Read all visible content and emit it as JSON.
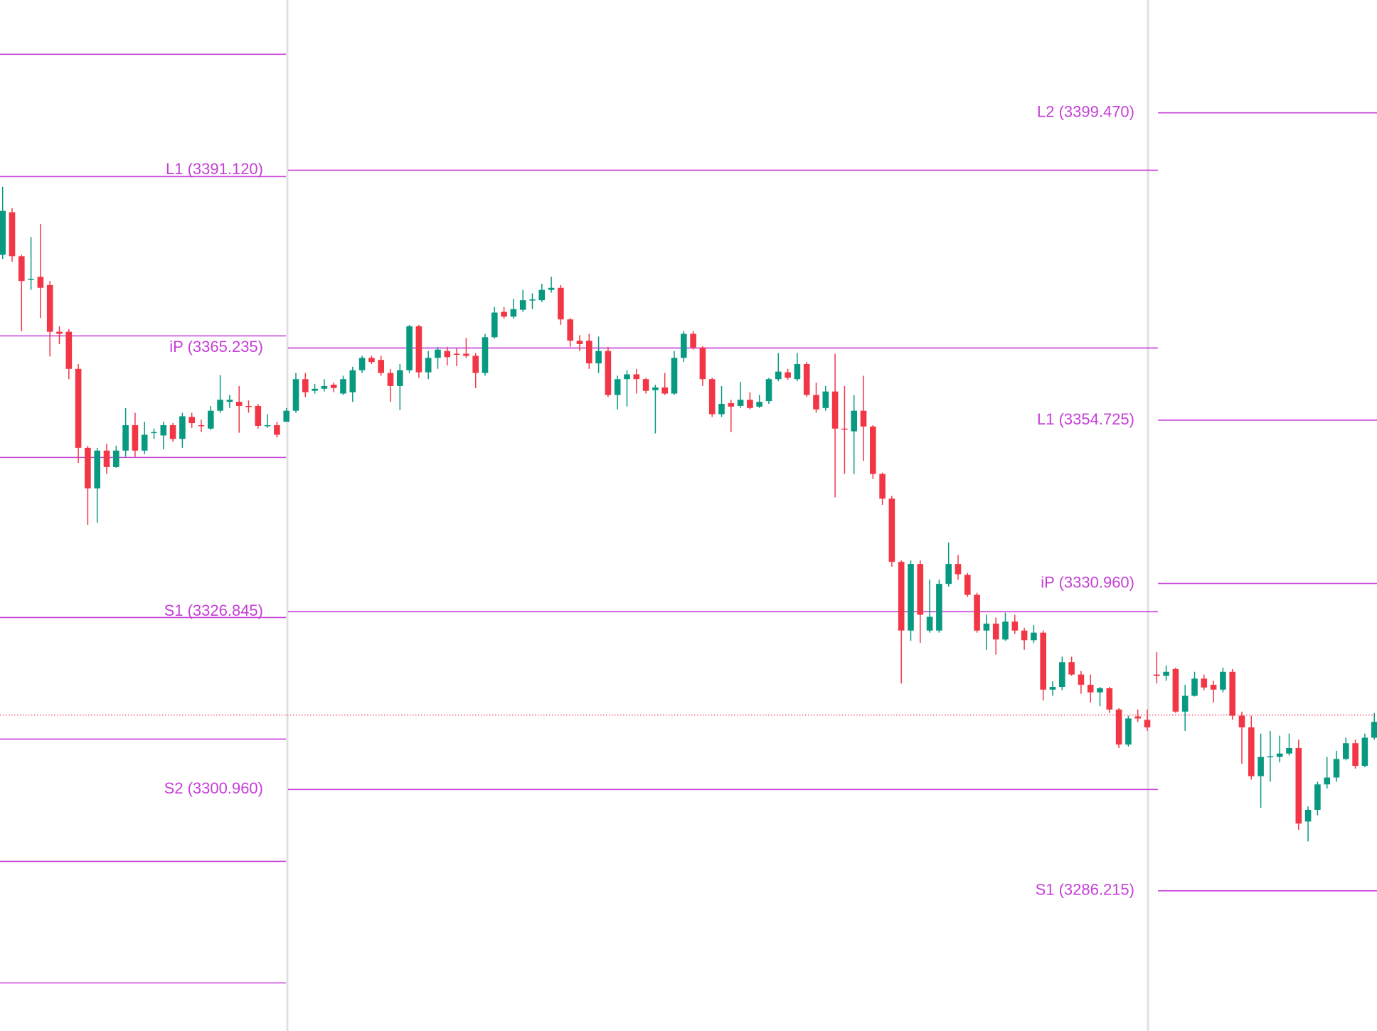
{
  "chart_data": {
    "type": "candlestick",
    "ylim": [
      3265.8,
      3415.9
    ],
    "up_color": "#089981",
    "down_color": "#f23645",
    "level_color": "#c53fd6",
    "current_price": 3311.8,
    "sessions": [
      {
        "levels": [
          3408.0,
          3390.2,
          3367.0,
          3349.3,
          3326.0,
          3308.3,
          3290.5,
          3272.8
        ],
        "open": [
          3378.8,
          3385.0,
          3378.6,
          3375.3,
          3375.6,
          3374.4,
          3367.6,
          3367.6,
          3362.2,
          3350.7,
          3344.8,
          3350.3,
          3347.9,
          3350.3,
          3354.0,
          3350.3,
          3352.9,
          3352.5,
          3354.0,
          3352.0,
          3355.2,
          3354.0,
          3353.5,
          3356.1,
          3357.4,
          3357.4,
          3356.8,
          3356.8,
          3353.9,
          3354.0,
          3354.5
        ],
        "high": [
          3388.7,
          3385.6,
          3378.8,
          3381.4,
          3383.3,
          3375.0,
          3368.4,
          3368.0,
          3362.9,
          3351.0,
          3350.7,
          3351.3,
          3351.0,
          3356.5,
          3355.8,
          3354.5,
          3353.5,
          3354.5,
          3354.3,
          3355.8,
          3355.8,
          3354.8,
          3356.8,
          3361.3,
          3358.4,
          3359.7,
          3357.6,
          3357.1,
          3355.6,
          3354.5,
          3356.5
        ],
        "low": [
          3378.2,
          3377.8,
          3367.7,
          3373.7,
          3369.6,
          3364.0,
          3365.8,
          3360.7,
          3348.5,
          3339.5,
          3339.8,
          3346.9,
          3347.8,
          3349.4,
          3349.4,
          3349.8,
          3352.0,
          3350.5,
          3351.6,
          3350.7,
          3353.6,
          3353.0,
          3353.3,
          3355.8,
          3356.5,
          3352.9,
          3355.8,
          3353.5,
          3353.6,
          3352.2,
          3354.5
        ],
        "close": [
          3385.2,
          3378.6,
          3375.0,
          3375.3,
          3374.0,
          3367.6,
          3367.3,
          3362.2,
          3350.7,
          3344.8,
          3350.3,
          3347.9,
          3350.3,
          3354.0,
          3350.3,
          3352.6,
          3353.0,
          3354.0,
          3352.0,
          3355.3,
          3354.3,
          3353.9,
          3356.1,
          3357.7,
          3357.7,
          3356.8,
          3356.7,
          3353.9,
          3354.0,
          3352.6,
          3356.1
        ]
      },
      {
        "levels": [
          {
            "value": 3391.12,
            "label": "L1 (3391.120)"
          },
          {
            "value": 3365.235,
            "label": "iP (3365.235)"
          },
          {
            "value": 3326.845,
            "label": "S1 (3326.845)"
          },
          {
            "value": 3300.96,
            "label": "S2 (3300.960)"
          }
        ],
        "open": [
          3356.1,
          3360.7,
          3359.0,
          3359.3,
          3359.9,
          3358.6,
          3358.8,
          3362.0,
          3363.8,
          3363.5,
          3361.6,
          3359.7,
          3362.0,
          3368.4,
          3361.7,
          3363.8,
          3364.8,
          3364.4,
          3364.4,
          3364.1,
          3361.6,
          3366.8,
          3370.5,
          3369.8,
          3370.8,
          3372.2,
          3372.2,
          3373.7,
          3374.0,
          3369.4,
          3366.3,
          3366.3,
          3363.0,
          3364.8,
          3358.4,
          3360.7,
          3361.4,
          3360.7,
          3359.1,
          3359.5,
          3358.6,
          3363.8,
          3367.3,
          3365.3,
          3360.7,
          3355.6,
          3357.2,
          3356.8,
          3357.7,
          3356.7,
          3357.5,
          3360.7,
          3361.7,
          3360.7,
          3362.9,
          3358.4,
          3356.5,
          3358.9,
          3353.5,
          3353.1,
          3356.1,
          3353.8,
          3346.9,
          3343.3,
          3334.1,
          3324.1,
          3333.8,
          3324.1,
          3324.1,
          3330.9,
          3333.8,
          3332.2,
          3329.3,
          3324.1,
          3325.1,
          3322.8,
          3325.4,
          3324.1,
          3322.7,
          3323.8,
          3315.5,
          3315.9,
          3319.5,
          3317.7,
          3316.2,
          3315.1,
          3315.7,
          3312.6,
          3307.5,
          3311.6,
          3311.1
        ],
        "high": [
          3361.6,
          3361.6,
          3360.0,
          3360.7,
          3360.2,
          3361.2,
          3362.5,
          3364.1,
          3364.1,
          3364.1,
          3362.2,
          3362.9,
          3368.6,
          3368.6,
          3364.8,
          3365.4,
          3365.4,
          3365.2,
          3366.7,
          3364.5,
          3367.3,
          3371.2,
          3371.2,
          3372.4,
          3373.7,
          3373.2,
          3374.6,
          3375.6,
          3374.4,
          3369.6,
          3367.1,
          3367.3,
          3366.9,
          3365.4,
          3361.2,
          3362.0,
          3362.2,
          3360.9,
          3359.9,
          3361.6,
          3364.8,
          3367.7,
          3367.7,
          3365.5,
          3360.9,
          3359.7,
          3357.7,
          3360.3,
          3358.8,
          3358.4,
          3360.9,
          3364.5,
          3362.2,
          3364.5,
          3363.2,
          3360.2,
          3359.7,
          3364.4,
          3359.7,
          3358.4,
          3361.2,
          3354.0,
          3347.1,
          3343.7,
          3334.3,
          3334.3,
          3334.3,
          3331.5,
          3331.5,
          3336.9,
          3335.1,
          3332.5,
          3329.6,
          3326.4,
          3326.0,
          3326.7,
          3326.4,
          3324.5,
          3324.9,
          3324.1,
          3316.7,
          3320.3,
          3320.3,
          3318.2,
          3317.7,
          3315.9,
          3315.9,
          3312.8,
          3311.7,
          3312.6,
          3312.6
        ],
        "low": [
          3355.8,
          3358.1,
          3358.6,
          3358.9,
          3358.8,
          3358.4,
          3357.4,
          3361.6,
          3362.9,
          3361.2,
          3357.4,
          3356.2,
          3361.6,
          3360.9,
          3360.7,
          3362.2,
          3362.7,
          3362.6,
          3363.8,
          3359.4,
          3361.2,
          3366.6,
          3369.5,
          3369.5,
          3370.5,
          3370.9,
          3371.9,
          3373.3,
          3368.6,
          3365.4,
          3364.8,
          3362.2,
          3361.6,
          3358.1,
          3356.3,
          3356.7,
          3358.6,
          3358.6,
          3352.8,
          3358.4,
          3358.4,
          3363.2,
          3365.0,
          3359.7,
          3355.2,
          3355.2,
          3353.0,
          3356.5,
          3356.3,
          3356.5,
          3357.1,
          3360.4,
          3360.6,
          3360.4,
          3358.1,
          3355.8,
          3356.1,
          3343.5,
          3346.9,
          3346.9,
          3348.8,
          3346.2,
          3342.4,
          3333.4,
          3316.4,
          3322.6,
          3322.3,
          3323.8,
          3323.8,
          3330.5,
          3331.5,
          3329.0,
          3323.8,
          3321.3,
          3320.6,
          3322.6,
          3323.6,
          3321.3,
          3322.3,
          3313.9,
          3314.6,
          3315.4,
          3317.5,
          3314.9,
          3313.6,
          3313.1,
          3312.1,
          3307.0,
          3307.2,
          3310.8,
          3309.5
        ],
        "close": [
          3360.7,
          3358.8,
          3359.3,
          3359.7,
          3359.4,
          3360.7,
          3362.0,
          3363.8,
          3363.2,
          3361.6,
          3359.7,
          3362.0,
          3368.4,
          3361.7,
          3363.8,
          3365.0,
          3363.9,
          3364.3,
          3364.1,
          3361.6,
          3366.8,
          3370.4,
          3369.8,
          3370.9,
          3372.2,
          3372.3,
          3373.7,
          3374.0,
          3369.4,
          3366.3,
          3365.8,
          3363.0,
          3364.8,
          3358.4,
          3360.7,
          3361.4,
          3360.7,
          3359.0,
          3359.5,
          3358.6,
          3363.8,
          3367.3,
          3365.3,
          3360.7,
          3355.6,
          3357.1,
          3356.7,
          3357.7,
          3356.5,
          3357.4,
          3360.7,
          3361.8,
          3360.9,
          3362.9,
          3358.4,
          3356.3,
          3358.9,
          3353.5,
          3353.4,
          3356.1,
          3353.8,
          3346.9,
          3343.3,
          3334.1,
          3324.1,
          3333.8,
          3326.4,
          3326.1,
          3330.9,
          3333.8,
          3332.3,
          3329.3,
          3324.1,
          3325.1,
          3322.8,
          3325.4,
          3324.1,
          3322.7,
          3323.8,
          3315.5,
          3315.9,
          3319.5,
          3317.7,
          3316.2,
          3315.1,
          3315.7,
          3312.6,
          3307.5,
          3311.3,
          3311.3,
          3310.0
        ]
      },
      {
        "levels": [
          {
            "value": 3399.47,
            "label": "L2 (3399.470)"
          },
          {
            "value": 3354.725,
            "label": "L1 (3354.725)"
          },
          {
            "value": 3330.96,
            "label": "iP (3330.960)"
          },
          {
            "value": 3286.215,
            "label": "S1 (3286.215)"
          }
        ],
        "open": [
          3317.7,
          3317.5,
          3318.5,
          3312.3,
          3314.6,
          3317.1,
          3316.2,
          3315.5,
          3318.1,
          3311.7,
          3310.0,
          3302.9,
          3305.7,
          3305.7,
          3306.2,
          3307.0,
          3296.3,
          3298.0,
          3301.7,
          3302.7,
          3305.4,
          3307.7,
          3304.4,
          3308.5
        ],
        "high": [
          3321.0,
          3319.0,
          3318.7,
          3316.2,
          3318.1,
          3317.7,
          3316.8,
          3318.7,
          3318.5,
          3312.3,
          3311.7,
          3309.1,
          3309.5,
          3308.8,
          3309.1,
          3308.2,
          3298.5,
          3302.1,
          3305.7,
          3306.6,
          3308.5,
          3308.2,
          3309.1,
          3312.1
        ],
        "low": [
          3316.4,
          3316.8,
          3312.1,
          3309.5,
          3314.5,
          3315.4,
          3313.6,
          3315.1,
          3311.1,
          3304.7,
          3302.4,
          3298.3,
          3302.1,
          3304.9,
          3305.9,
          3295.1,
          3293.4,
          3297.2,
          3301.1,
          3302.1,
          3305.2,
          3304.0,
          3304.2,
          3308.2
        ],
        "close": [
          3317.5,
          3318.1,
          3312.3,
          3314.6,
          3317.1,
          3315.8,
          3315.5,
          3318.1,
          3311.7,
          3310.0,
          3302.9,
          3305.7,
          3305.8,
          3306.2,
          3307.0,
          3296.0,
          3298.0,
          3301.7,
          3302.7,
          3305.4,
          3307.7,
          3304.4,
          3308.5,
          3310.8
        ]
      }
    ]
  }
}
